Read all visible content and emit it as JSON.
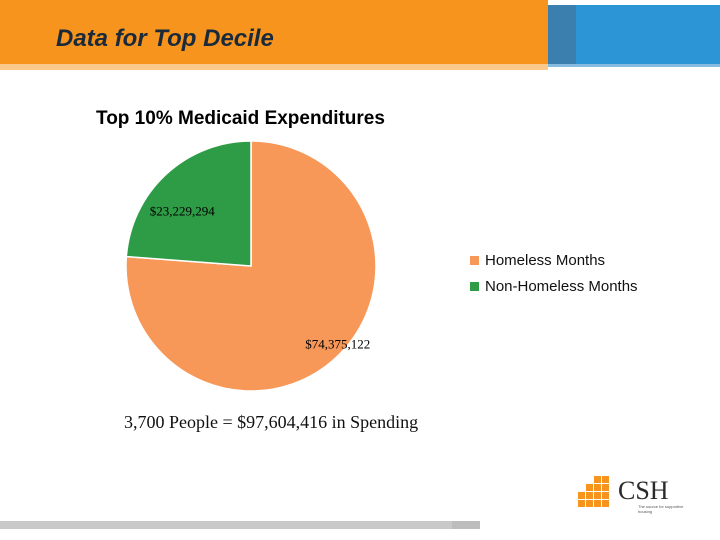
{
  "slide": {
    "title": "Data for Top Decile",
    "caption": "3,700 People = $97,604,416 in Spending",
    "logo_text": "CSH",
    "logo_sub": "The source for\nsupportive housing"
  },
  "colors": {
    "homeless": "#f79859",
    "non_homeless": "#2e9b46",
    "header": "#f7941d",
    "accent": "#2b95d6"
  },
  "chart_data": {
    "type": "pie",
    "title": "Top 10%  Medicaid Expenditures",
    "series": [
      {
        "name": "Homeless Months",
        "value": 74375122,
        "label": "$74,375,122",
        "color": "#f79859"
      },
      {
        "name": "Non-Homeless Months",
        "value": 23229294,
        "label": "$23,229,294",
        "color": "#2e9b46"
      }
    ],
    "legend_position": "right"
  }
}
